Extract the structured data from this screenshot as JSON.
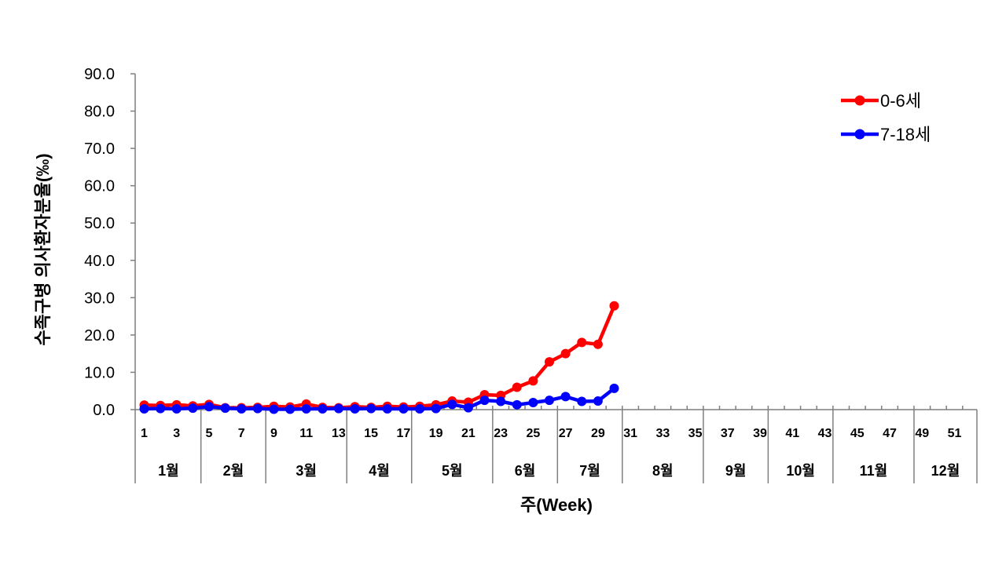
{
  "chart_data": {
    "type": "line",
    "ylabel": "수족구병 의사환자분율(‰)",
    "xlabel": "주(Week)",
    "ylim": [
      0,
      90
    ],
    "y_ticks": [
      "0.0",
      "10.0",
      "20.0",
      "30.0",
      "40.0",
      "50.0",
      "60.0",
      "70.0",
      "80.0",
      "90.0"
    ],
    "x_range": [
      1,
      53
    ],
    "x_tick_labels": [
      "1",
      "3",
      "5",
      "7",
      "9",
      "11",
      "13",
      "15",
      "17",
      "19",
      "21",
      "23",
      "25",
      "27",
      "29",
      "31",
      "33",
      "35",
      "37",
      "39",
      "41",
      "43",
      "45",
      "47",
      "49",
      "51"
    ],
    "months": [
      {
        "label": "1월",
        "start_week": 1,
        "end_week": 4
      },
      {
        "label": "2월",
        "start_week": 5,
        "end_week": 8
      },
      {
        "label": "3월",
        "start_week": 9,
        "end_week": 13
      },
      {
        "label": "4월",
        "start_week": 14,
        "end_week": 17
      },
      {
        "label": "5월",
        "start_week": 18,
        "end_week": 22
      },
      {
        "label": "6월",
        "start_week": 23,
        "end_week": 26
      },
      {
        "label": "7월",
        "start_week": 27,
        "end_week": 30
      },
      {
        "label": "8월",
        "start_week": 31,
        "end_week": 35
      },
      {
        "label": "9월",
        "start_week": 36,
        "end_week": 39
      },
      {
        "label": "10월",
        "start_week": 40,
        "end_week": 43
      },
      {
        "label": "11월",
        "start_week": 44,
        "end_week": 48
      },
      {
        "label": "12월",
        "start_week": 49,
        "end_week": 52
      }
    ],
    "series": [
      {
        "name": "0-6세",
        "color": "#ff0000",
        "weeks": [
          1,
          2,
          3,
          4,
          5,
          6,
          7,
          8,
          9,
          10,
          11,
          12,
          13,
          14,
          15,
          16,
          17,
          18,
          19,
          20,
          21,
          22,
          23,
          24,
          25,
          26,
          27,
          28,
          29,
          30
        ],
        "values": [
          1.2,
          1.1,
          1.3,
          1.0,
          1.4,
          0.5,
          0.5,
          0.6,
          0.9,
          0.7,
          1.5,
          0.6,
          0.5,
          0.8,
          0.6,
          0.9,
          0.7,
          0.9,
          1.3,
          2.3,
          2.0,
          4.0,
          3.8,
          6.0,
          7.7,
          12.8,
          15.0,
          18.0,
          17.5,
          27.8
        ]
      },
      {
        "name": "7-18세",
        "color": "#0000ff",
        "weeks": [
          1,
          2,
          3,
          4,
          5,
          6,
          7,
          8,
          9,
          10,
          11,
          12,
          13,
          14,
          15,
          16,
          17,
          18,
          19,
          20,
          21,
          22,
          23,
          24,
          25,
          26,
          27,
          28,
          29,
          30
        ],
        "values": [
          0.2,
          0.3,
          0.2,
          0.4,
          0.8,
          0.4,
          0.2,
          0.3,
          0.1,
          0.1,
          0.2,
          0.2,
          0.3,
          0.2,
          0.3,
          0.2,
          0.2,
          0.2,
          0.3,
          1.4,
          0.5,
          2.5,
          2.2,
          1.3,
          1.9,
          2.5,
          3.5,
          2.2,
          2.3,
          5.7
        ]
      }
    ]
  }
}
